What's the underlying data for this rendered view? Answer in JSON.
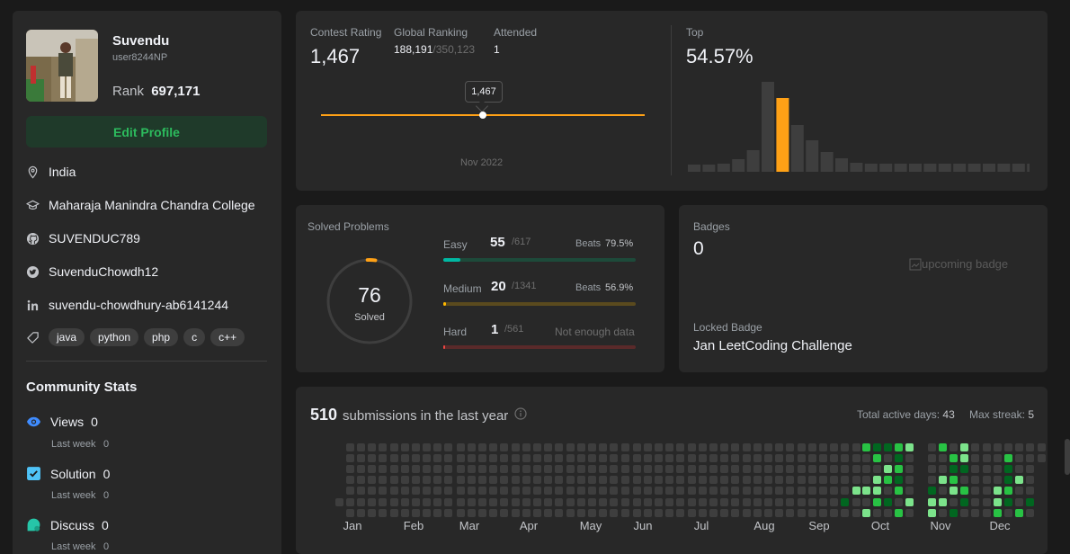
{
  "profile": {
    "name": "Suvendu",
    "username": "user8244NP",
    "rank_label": "Rank",
    "rank_value": "697,171",
    "edit_label": "Edit Profile",
    "location": "India",
    "college": "Maharaja Manindra Chandra College",
    "github": "SUVENDUC789",
    "twitter": "SuvenduChowdh12",
    "linkedin": "suvendu-chowdhury-ab6141244",
    "tags": [
      "java",
      "python",
      "php",
      "c",
      "c++"
    ]
  },
  "community": {
    "title": "Community Stats",
    "views_label": "Views",
    "views_value": "0",
    "views_week_label": "Last week",
    "views_week_value": "0",
    "solution_label": "Solution",
    "solution_value": "0",
    "solution_week_label": "Last week",
    "solution_week_value": "0",
    "discuss_label": "Discuss",
    "discuss_value": "0",
    "discuss_week_label": "Last week",
    "discuss_week_value": "0"
  },
  "contest": {
    "rating_label": "Contest Rating",
    "rating_value": "1,467",
    "global_label": "Global Ranking",
    "global_value": "188,191",
    "global_total": "/350,123",
    "attended_label": "Attended",
    "attended_value": "1",
    "tooltip": "1,467",
    "month": "Nov 2022",
    "top_label": "Top",
    "top_value": "54.57%"
  },
  "chart_data": {
    "type": "bar",
    "title": "",
    "values": [
      8,
      8,
      9,
      14,
      24,
      100,
      82,
      52,
      35,
      22,
      15,
      10,
      9,
      9,
      9,
      9,
      9,
      9,
      9,
      9,
      9,
      9,
      9,
      9
    ],
    "highlight_index": 6,
    "colors": {
      "bar": "#3e3e3e",
      "highlight": "#ffa116"
    }
  },
  "solved": {
    "title": "Solved Problems",
    "count": "76",
    "count_label": "Solved",
    "easy_label": "Easy",
    "easy_value": "55",
    "easy_total": "/617",
    "easy_beats": "Beats",
    "easy_beats_value": "79.5%",
    "easy_fraction": 0.089,
    "medium_label": "Medium",
    "medium_value": "20",
    "medium_total": "/1341",
    "medium_beats": "Beats",
    "medium_beats_value": "56.9%",
    "medium_fraction": 0.015,
    "hard_label": "Hard",
    "hard_value": "1",
    "hard_total": "/561",
    "hard_note": "Not enough data",
    "hard_fraction": 0.002
  },
  "badges": {
    "title": "Badges",
    "count": "0",
    "upcoming_alt": "upcoming badge",
    "locked_label": "Locked Badge",
    "locked_name": "Jan LeetCoding Challenge"
  },
  "submissions": {
    "count": "510",
    "label": "submissions in the last year",
    "active_label": "Total active days:",
    "active_value": "43",
    "streak_label": "Max streak:",
    "streak_value": "5",
    "months": [
      "Jan",
      "Feb",
      "Mar",
      "Apr",
      "May",
      "Jun",
      "Jul",
      "Aug",
      "Sep",
      "Oct",
      "Nov",
      "Dec"
    ],
    "colors": {
      "empty": "#3e3e3e",
      "low": "#016620",
      "mid": "#28c244",
      "high": "#7ce38b"
    }
  }
}
